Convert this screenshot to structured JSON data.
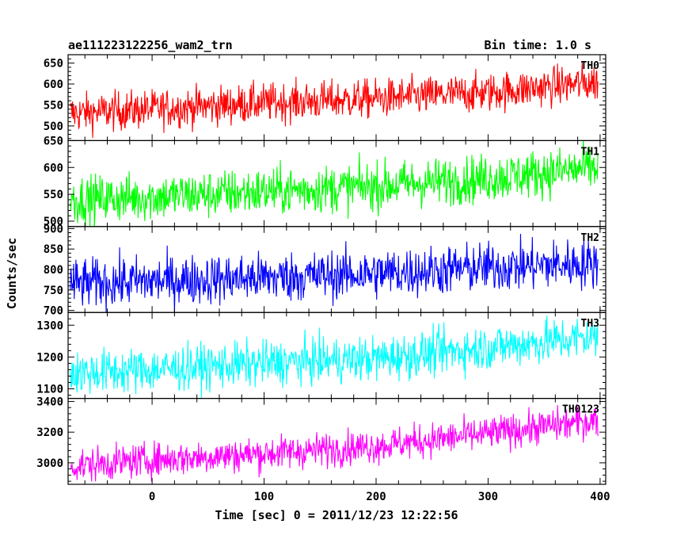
{
  "chart_data": {
    "type": "line",
    "title_left": "ae111223122256_wam2_trn",
    "title_right": "Bin time: 1.0 s",
    "xlabel": "Time [sec] 0 = 2011/12/23 12:22:56",
    "ylabel": "Counts/sec",
    "xlim": [
      -75,
      405
    ],
    "x_ticks": [
      "0",
      "100",
      "200",
      "300",
      "400"
    ],
    "x_tick_values": [
      0,
      100,
      200,
      300,
      400
    ],
    "bin_time_s": 1.0,
    "panels": [
      {
        "name": "TH0",
        "color": "#ff0000",
        "ylim": [
          465,
          670
        ],
        "yticks": [
          "500",
          "550",
          "600",
          "650"
        ],
        "ytick_values": [
          500,
          550,
          600,
          650
        ],
        "trend": [
          {
            "x": -70,
            "y": 530
          },
          {
            "x": 0,
            "y": 540
          },
          {
            "x": 100,
            "y": 555
          },
          {
            "x": 200,
            "y": 565
          },
          {
            "x": 300,
            "y": 580
          },
          {
            "x": 398,
            "y": 605
          }
        ],
        "noise": 23
      },
      {
        "name": "TH1",
        "color": "#00ff00",
        "ylim": [
          490,
          650
        ],
        "yticks": [
          "500",
          "550",
          "600",
          "650"
        ],
        "ytick_values": [
          500,
          550,
          600,
          650
        ],
        "trend": [
          {
            "x": -70,
            "y": 540
          },
          {
            "x": 0,
            "y": 545
          },
          {
            "x": 100,
            "y": 555
          },
          {
            "x": 200,
            "y": 565
          },
          {
            "x": 300,
            "y": 580
          },
          {
            "x": 398,
            "y": 600
          }
        ],
        "noise": 22
      },
      {
        "name": "TH2",
        "color": "#0000ff",
        "ylim": [
          695,
          905
        ],
        "yticks": [
          "700",
          "750",
          "800",
          "850",
          "900"
        ],
        "ytick_values": [
          700,
          750,
          800,
          850,
          900
        ],
        "trend": [
          {
            "x": -70,
            "y": 765
          },
          {
            "x": 0,
            "y": 772
          },
          {
            "x": 100,
            "y": 780
          },
          {
            "x": 200,
            "y": 790
          },
          {
            "x": 300,
            "y": 805
          },
          {
            "x": 398,
            "y": 815
          }
        ],
        "noise": 30
      },
      {
        "name": "TH3",
        "color": "#00ffff",
        "ylim": [
          1070,
          1340
        ],
        "yticks": [
          "1100",
          "1200",
          "1300"
        ],
        "ytick_values": [
          1100,
          1200,
          1300
        ],
        "trend": [
          {
            "x": -70,
            "y": 1150
          },
          {
            "x": 0,
            "y": 1160
          },
          {
            "x": 100,
            "y": 1180
          },
          {
            "x": 200,
            "y": 1195
          },
          {
            "x": 300,
            "y": 1230
          },
          {
            "x": 398,
            "y": 1265
          }
        ],
        "noise": 35
      },
      {
        "name": "TH0123",
        "color": "#ff00ff",
        "ylim": [
          2860,
          3420
        ],
        "yticks": [
          "3000",
          "3200",
          "3400"
        ],
        "ytick_values": [
          3000,
          3200,
          3400
        ],
        "trend": [
          {
            "x": -70,
            "y": 2980
          },
          {
            "x": 0,
            "y": 3020
          },
          {
            "x": 100,
            "y": 3060
          },
          {
            "x": 200,
            "y": 3110
          },
          {
            "x": 300,
            "y": 3190
          },
          {
            "x": 398,
            "y": 3280
          }
        ],
        "noise": 55
      }
    ]
  }
}
